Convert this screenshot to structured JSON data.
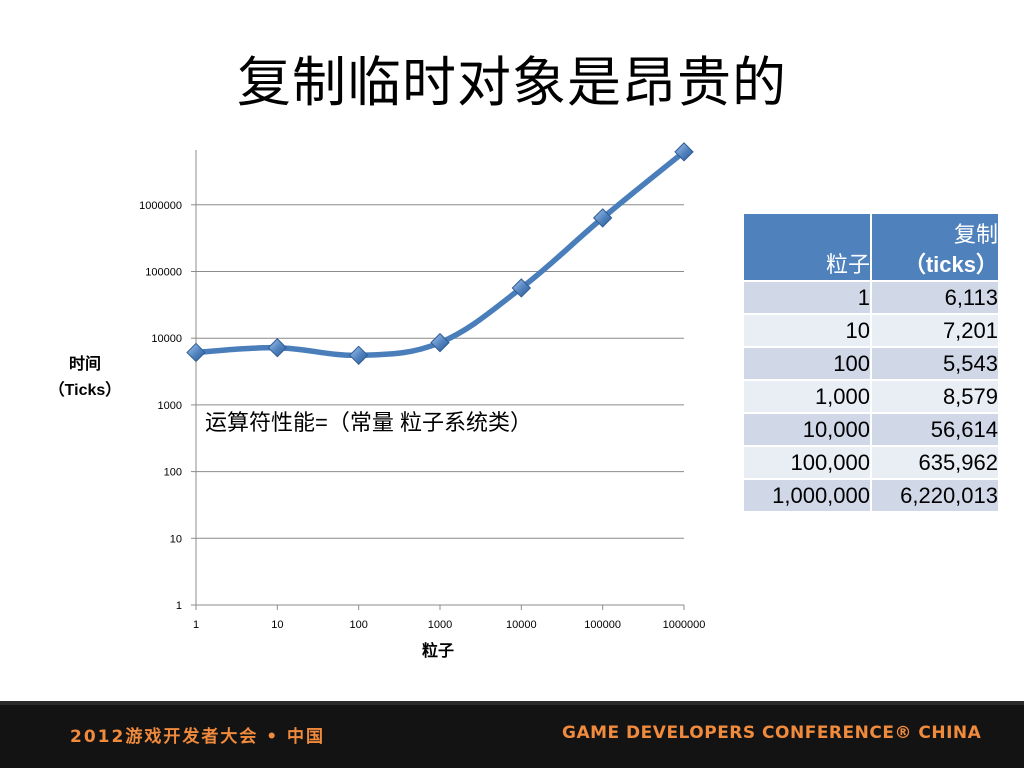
{
  "slide": {
    "title": "复制临时对象是昂贵的",
    "annotation": "运算符性能=（常量 粒子系统类）"
  },
  "chart_data": {
    "type": "line",
    "x_scale": "log",
    "y_scale": "log",
    "xlabel": "粒子",
    "ylabel_line1": "时间",
    "ylabel_line2": "（Ticks）",
    "x_ticks": [
      "1",
      "10",
      "100",
      "1000",
      "10000",
      "100000",
      "1000000"
    ],
    "y_ticks": [
      "1",
      "10",
      "100",
      "1000",
      "10000",
      "100000",
      "1000000"
    ],
    "xlim": [
      1,
      1000000
    ],
    "ylim": [
      1,
      10000000
    ],
    "grid": true,
    "series": [
      {
        "x": [
          1,
          10,
          100,
          1000,
          10000,
          100000,
          1000000
        ],
        "y": [
          6113,
          7201,
          5543,
          8579,
          56614,
          635962,
          6220013
        ],
        "color": "#4a7ebb",
        "marker": "diamond"
      }
    ]
  },
  "table": {
    "headers": [
      {
        "line1": "",
        "line2": "粒子"
      },
      {
        "line1": "复制",
        "line2": "（ticks）"
      }
    ],
    "rows": [
      [
        "1",
        "6,113"
      ],
      [
        "10",
        "7,201"
      ],
      [
        "100",
        "5,543"
      ],
      [
        "1,000",
        "8,579"
      ],
      [
        "10,000",
        "56,614"
      ],
      [
        "100,000",
        "635,962"
      ],
      [
        "1,000,000",
        "6,220,013"
      ]
    ]
  },
  "footer": {
    "left": "2012游戏开发者大会 • 中国",
    "right": "GAME DEVELOPERS CONFERENCE® CHINA",
    "accent": "#f08a3c"
  }
}
